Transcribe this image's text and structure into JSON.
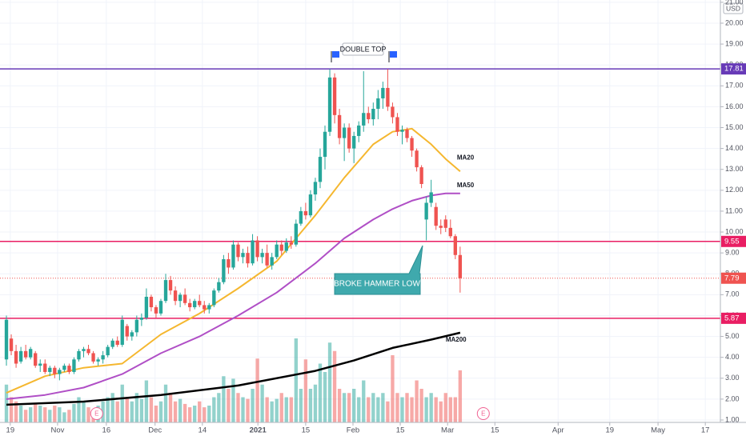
{
  "chart_data": {
    "type": "candlestick",
    "currency": "USD",
    "x": [
      0,
      1,
      2,
      3,
      4,
      5,
      6,
      7,
      8,
      9,
      10,
      11,
      12,
      13,
      14,
      15,
      16,
      17,
      18,
      19,
      20,
      21,
      22,
      23,
      24,
      25,
      26,
      27,
      28,
      29,
      30,
      31,
      32,
      33,
      34,
      35,
      36,
      37,
      38,
      39,
      40,
      41,
      42,
      43,
      44,
      45,
      46,
      47,
      48,
      49,
      50,
      51,
      52,
      53,
      54,
      55,
      56,
      57,
      58,
      59,
      60,
      61,
      62,
      63,
      64,
      65,
      66,
      67,
      68,
      69,
      70,
      71,
      72,
      73,
      74,
      75,
      76,
      77,
      78,
      79,
      80,
      81,
      82,
      83,
      84,
      85,
      86,
      87,
      88,
      89,
      90,
      91,
      92,
      93,
      94
    ],
    "open": [
      3.9,
      4.9,
      4.3,
      3.8,
      4.3,
      4.0,
      4.2,
      3.6,
      3.7,
      3.3,
      3.5,
      3.2,
      3.4,
      3.6,
      3.3,
      3.9,
      4.3,
      4.4,
      4.2,
      3.8,
      3.9,
      4.1,
      4.5,
      4.8,
      4.6,
      5.5,
      5.0,
      5.2,
      5.8,
      5.9,
      6.9,
      6.4,
      6.1,
      6.7,
      7.7,
      7.2,
      6.7,
      7.0,
      6.6,
      6.4,
      6.7,
      6.5,
      6.3,
      6.5,
      7.2,
      7.6,
      8.7,
      8.3,
      9.4,
      8.8,
      9.0,
      8.5,
      9.6,
      8.8,
      9.0,
      8.4,
      8.8,
      9.4,
      9.1,
      9.5,
      9.4,
      10.4,
      11.0,
      10.8,
      11.8,
      12.4,
      13.6,
      14.8,
      17.4,
      15.6,
      14.5,
      15.0,
      14.0,
      14.6,
      15.1,
      15.7,
      15.4,
      15.9,
      16.4,
      16.9,
      16.0,
      15.5,
      14.8,
      14.9,
      14.5,
      13.9,
      13.1,
      10.6,
      11.4,
      11.2,
      10.3,
      10.6,
      10.2,
      9.8,
      8.9
    ],
    "high": [
      6.0,
      5.1,
      4.6,
      4.5,
      4.6,
      4.5,
      4.3,
      3.9,
      3.9,
      3.6,
      3.6,
      3.5,
      3.7,
      3.7,
      4.0,
      4.4,
      4.5,
      4.6,
      4.3,
      4.0,
      4.3,
      4.6,
      4.9,
      5.0,
      6.0,
      5.6,
      5.3,
      6.0,
      6.1,
      7.3,
      7.0,
      6.5,
      6.8,
      8.0,
      7.9,
      7.4,
      7.1,
      7.3,
      6.8,
      6.8,
      7.0,
      6.7,
      6.6,
      7.3,
      7.8,
      8.9,
      9.0,
      9.6,
      9.5,
      9.2,
      9.3,
      9.9,
      9.8,
      9.2,
      9.4,
      9.0,
      9.6,
      9.6,
      9.7,
      9.8,
      10.6,
      11.2,
      11.4,
      12.0,
      12.6,
      14.0,
      15.1,
      17.8,
      17.6,
      15.9,
      15.2,
      15.2,
      14.8,
      15.3,
      17.7,
      16.0,
      16.2,
      16.8,
      17.2,
      17.8,
      16.2,
      15.7,
      15.1,
      15.0,
      14.6,
      14.0,
      13.2,
      11.7,
      12.5,
      11.4,
      10.6,
      10.8,
      10.6,
      9.9,
      9.3
    ],
    "low": [
      3.6,
      4.1,
      3.5,
      3.7,
      3.9,
      3.9,
      3.5,
      3.3,
      3.2,
      3.1,
      3.0,
      2.9,
      3.3,
      3.2,
      3.2,
      3.8,
      4.0,
      4.1,
      3.7,
      3.6,
      3.7,
      4.0,
      4.4,
      4.5,
      4.5,
      4.8,
      4.8,
      5.0,
      5.5,
      5.8,
      6.2,
      5.9,
      6.0,
      6.6,
      7.0,
      6.5,
      6.4,
      6.5,
      6.2,
      6.3,
      6.4,
      6.1,
      6.1,
      6.4,
      7.1,
      7.5,
      8.0,
      8.2,
      8.6,
      8.5,
      8.3,
      8.4,
      8.6,
      8.5,
      8.3,
      8.2,
      8.7,
      8.9,
      9.0,
      9.2,
      9.3,
      10.3,
      10.6,
      10.7,
      11.5,
      12.1,
      13.0,
      14.6,
      15.2,
      14.2,
      13.4,
      13.8,
      13.3,
      14.3,
      14.8,
      15.2,
      15.1,
      15.4,
      15.9,
      15.8,
      15.2,
      14.6,
      14.2,
      14.3,
      13.6,
      12.9,
      12.1,
      9.6,
      11.2,
      10.1,
      9.9,
      10.0,
      9.7,
      8.7,
      7.1
    ],
    "close": [
      5.8,
      4.3,
      3.7,
      4.3,
      4.0,
      4.4,
      3.6,
      3.7,
      3.3,
      3.5,
      3.2,
      3.4,
      3.6,
      3.3,
      3.9,
      4.3,
      4.4,
      4.2,
      3.8,
      3.9,
      4.1,
      4.5,
      4.8,
      4.6,
      5.8,
      5.0,
      5.2,
      5.8,
      5.9,
      6.9,
      6.4,
      6.1,
      6.7,
      7.7,
      7.2,
      6.7,
      7.0,
      6.6,
      6.4,
      6.7,
      6.5,
      6.3,
      6.5,
      7.2,
      7.6,
      8.7,
      8.3,
      9.4,
      8.8,
      9.0,
      8.5,
      9.6,
      8.8,
      9.0,
      8.4,
      8.8,
      9.4,
      9.1,
      9.5,
      9.4,
      10.4,
      11.0,
      10.8,
      11.8,
      12.4,
      13.6,
      14.8,
      17.4,
      15.6,
      14.5,
      15.0,
      14.0,
      14.6,
      15.1,
      15.7,
      15.4,
      15.9,
      16.4,
      16.9,
      16.0,
      15.5,
      14.8,
      14.9,
      14.5,
      13.9,
      13.1,
      12.3,
      11.4,
      11.9,
      10.3,
      10.2,
      10.2,
      9.8,
      8.9,
      7.79
    ],
    "volume": [
      45,
      30,
      25,
      20,
      15,
      18,
      22,
      20,
      18,
      15,
      20,
      18,
      12,
      15,
      22,
      30,
      25,
      18,
      15,
      20,
      25,
      30,
      35,
      25,
      45,
      30,
      25,
      35,
      28,
      50,
      30,
      20,
      25,
      45,
      35,
      25,
      28,
      22,
      18,
      20,
      25,
      18,
      20,
      30,
      35,
      55,
      40,
      52,
      35,
      30,
      28,
      40,
      76,
      45,
      30,
      25,
      28,
      35,
      30,
      30,
      100,
      40,
      75,
      40,
      45,
      70,
      60,
      95,
      85,
      40,
      35,
      35,
      40,
      30,
      50,
      30,
      35,
      30,
      35,
      25,
      80,
      35,
      30,
      35,
      30,
      50,
      40,
      30,
      35,
      30,
      25,
      35,
      30,
      30,
      62
    ],
    "up_color": "#26a69a",
    "down_color": "#ef5350",
    "overlays": [
      {
        "name": "MA20",
        "color": "#f5b72f",
        "x": [
          0,
          8,
          16,
          24,
          32,
          40,
          48,
          56,
          64,
          70,
          76,
          80,
          84,
          88,
          91,
          94
        ],
        "values": [
          2.3,
          3.1,
          3.5,
          3.7,
          5.1,
          6.1,
          7.3,
          8.6,
          10.8,
          12.6,
          14.2,
          14.8,
          14.95,
          14.2,
          13.5,
          12.9
        ]
      },
      {
        "name": "MA50",
        "color": "#b04fc6",
        "x": [
          0,
          8,
          16,
          24,
          32,
          40,
          48,
          56,
          64,
          70,
          76,
          80,
          84,
          88,
          91,
          94
        ],
        "values": [
          2.0,
          2.2,
          2.55,
          3.2,
          4.2,
          5.0,
          6.0,
          7.1,
          8.5,
          9.7,
          10.6,
          11.1,
          11.5,
          11.75,
          11.85,
          11.85
        ]
      },
      {
        "name": "MA200",
        "color": "#000000",
        "x": [
          0,
          16,
          32,
          48,
          64,
          72,
          80,
          88,
          94
        ],
        "values": [
          1.73,
          1.88,
          2.2,
          2.65,
          3.35,
          3.85,
          4.45,
          4.85,
          5.18
        ]
      }
    ],
    "levels": [
      {
        "value": 17.81,
        "color": "#673ab7"
      },
      {
        "value": 9.55,
        "color": "#e91e63"
      },
      {
        "value": 5.87,
        "color": "#e91e63"
      }
    ],
    "annotations": {
      "double_top": "DOUBLE TOP",
      "broke_hammer_low": "BROKE HAMMER LOW"
    },
    "earnings": {
      "x": [
        18.7,
        98.8
      ],
      "labels": [
        "E",
        "E"
      ]
    },
    "xlim": [
      -1.33,
      147.92
    ],
    "xticks": [
      {
        "value": 0.8,
        "label": "19"
      },
      {
        "value": 10.6,
        "label": "Nov"
      },
      {
        "value": 20.7,
        "label": "16"
      },
      {
        "value": 30.8,
        "label": "Dec"
      },
      {
        "value": 40.6,
        "label": "14"
      },
      {
        "value": 52.1,
        "label": "2021"
      },
      {
        "value": 62.0,
        "label": "15"
      },
      {
        "value": 71.8,
        "label": "Feb"
      },
      {
        "value": 81.6,
        "label": "15"
      },
      {
        "value": 91.4,
        "label": "Mar"
      },
      {
        "value": 101.2,
        "label": "15"
      },
      {
        "value": 114.3,
        "label": "Apr"
      },
      {
        "value": 125.0,
        "label": "19"
      },
      {
        "value": 135.0,
        "label": "May"
      },
      {
        "value": 144.8,
        "label": "17"
      }
    ],
    "ylim": [
      0.885,
      21.11
    ],
    "yticks": [
      {
        "value": 1,
        "label": "1.00"
      },
      {
        "value": 2,
        "label": "2.00"
      },
      {
        "value": 3,
        "label": "3.00"
      },
      {
        "value": 4,
        "label": "4.00"
      },
      {
        "value": 5,
        "label": "5.00"
      },
      {
        "value": 6,
        "label": "6.00"
      },
      {
        "value": 7,
        "label": "7.00"
      },
      {
        "value": 8,
        "label": "8.00"
      },
      {
        "value": 9,
        "label": "9.00"
      },
      {
        "value": 10,
        "label": "10.00"
      },
      {
        "value": 11,
        "label": "11.00"
      },
      {
        "value": 12,
        "label": "12.00"
      },
      {
        "value": 13,
        "label": "13.00"
      },
      {
        "value": 14,
        "label": "14.00"
      },
      {
        "value": 15,
        "label": "15.00"
      },
      {
        "value": 16,
        "label": "16.00"
      },
      {
        "value": 17,
        "label": "17.00"
      },
      {
        "value": 18,
        "label": "18.00"
      },
      {
        "value": 19,
        "label": "19.00"
      },
      {
        "value": 20,
        "label": "20.00"
      },
      {
        "value": 21,
        "label": "21.00"
      }
    ],
    "grid": true
  }
}
